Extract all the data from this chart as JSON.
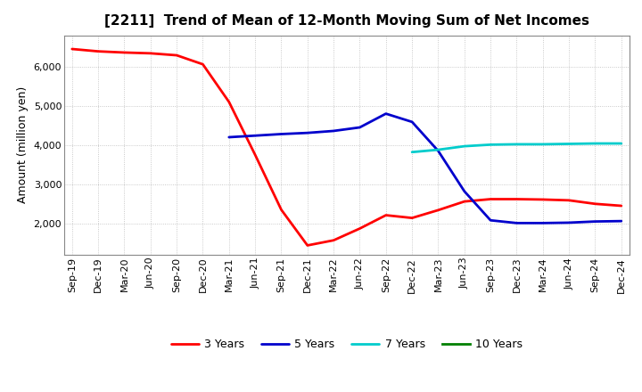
{
  "title": "[2211]  Trend of Mean of 12-Month Moving Sum of Net Incomes",
  "ylabel": "Amount (million yen)",
  "x_labels": [
    "Sep-19",
    "Dec-19",
    "Mar-20",
    "Jun-20",
    "Sep-20",
    "Dec-20",
    "Mar-21",
    "Jun-21",
    "Sep-21",
    "Dec-21",
    "Mar-22",
    "Jun-22",
    "Sep-22",
    "Dec-22",
    "Mar-23",
    "Jun-23",
    "Sep-23",
    "Dec-23",
    "Mar-24",
    "Jun-24",
    "Sep-24",
    "Dec-24"
  ],
  "series": {
    "3 Years": {
      "color": "#ff0000",
      "linewidth": 2.0,
      "data": [
        6450,
        6390,
        6360,
        6340,
        6290,
        6060,
        5100,
        3750,
        2350,
        1440,
        1570,
        1870,
        2210,
        2140,
        2340,
        2560,
        2620,
        2620,
        2610,
        2590,
        2500,
        2450
      ]
    },
    "5 Years": {
      "color": "#0000cc",
      "linewidth": 2.0,
      "data": [
        null,
        null,
        null,
        null,
        null,
        null,
        4200,
        4240,
        4280,
        4310,
        4360,
        4450,
        4800,
        4590,
        3850,
        2820,
        2080,
        2010,
        2010,
        2020,
        2050,
        2060
      ]
    },
    "7 Years": {
      "color": "#00cccc",
      "linewidth": 2.0,
      "data": [
        null,
        null,
        null,
        null,
        null,
        null,
        null,
        null,
        null,
        null,
        null,
        null,
        null,
        3820,
        3880,
        3970,
        4010,
        4020,
        4020,
        4030,
        4040,
        4040
      ]
    },
    "10 Years": {
      "color": "#008000",
      "linewidth": 2.0,
      "data": [
        null,
        null,
        null,
        null,
        null,
        null,
        null,
        null,
        null,
        null,
        null,
        null,
        null,
        null,
        null,
        null,
        null,
        null,
        null,
        null,
        null,
        null
      ]
    }
  },
  "ylim": [
    1200,
    6800
  ],
  "yticks": [
    2000,
    3000,
    4000,
    5000,
    6000
  ],
  "background_color": "#ffffff",
  "grid_color": "#bbbbbb",
  "title_fontsize": 11,
  "legend_fontsize": 9,
  "axis_fontsize": 8
}
